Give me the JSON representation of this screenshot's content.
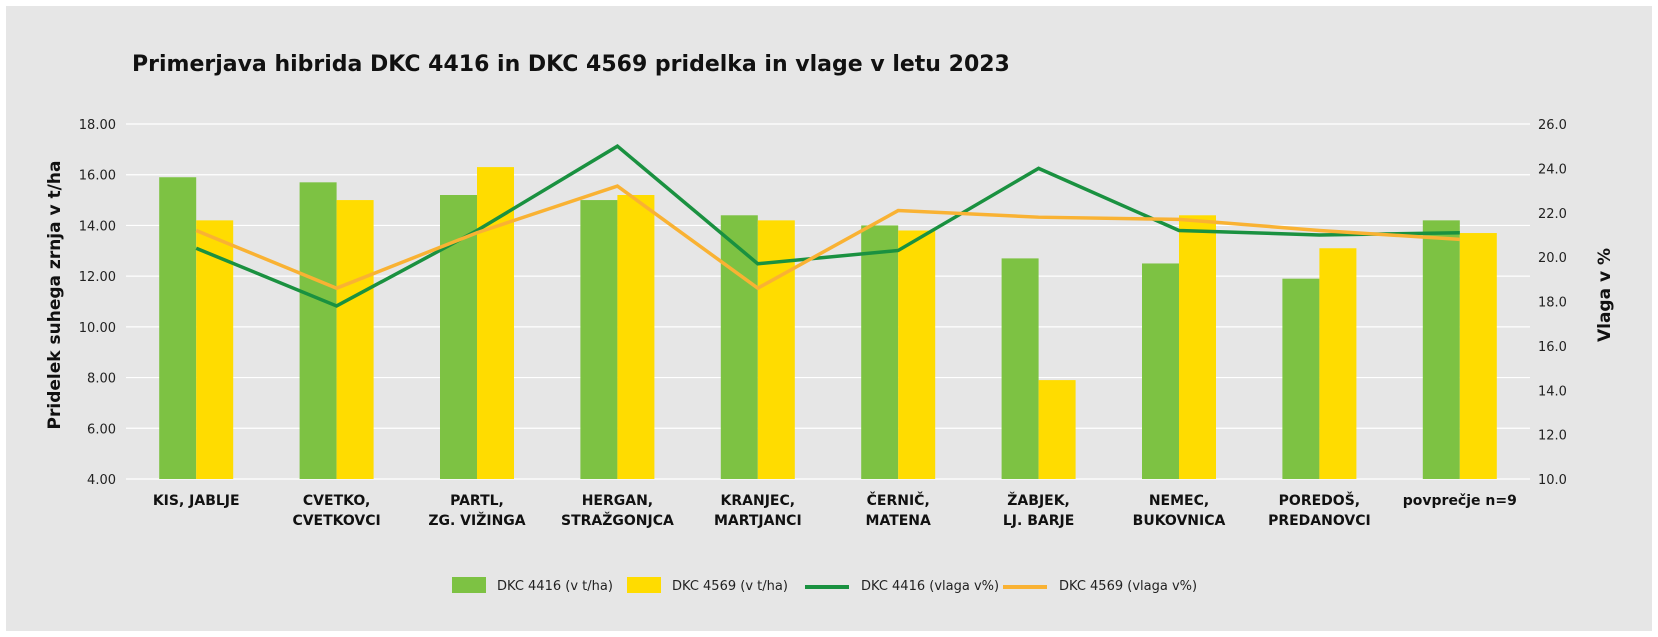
{
  "colors": {
    "background": "#e6e6e6",
    "dkc4416_bar": "#7dc243",
    "dkc4569_bar": "#ffdc00",
    "dkc4416_line": "#1a9140",
    "dkc4569_line": "#f9b233",
    "grid": "#ffffff"
  },
  "chart_data": {
    "type": "bar",
    "title": "Primerjava hibrida DKC 4416 in DKC 4569 pridelka in vlage v letu 2023",
    "ylabel": "Pridelek suhega zrnja v t/ha",
    "y2label": "Vlaga v %",
    "ylim": [
      4,
      18
    ],
    "y2lim": [
      10,
      26
    ],
    "yticks": [
      "4.00",
      "6.00",
      "8.00",
      "10.00",
      "12.00",
      "14.00",
      "16.00",
      "18.00"
    ],
    "y2ticks": [
      "10.0",
      "12.0",
      "14.0",
      "16.0",
      "18.0",
      "20.0",
      "22.0",
      "24.0",
      "26.0"
    ],
    "grid": true,
    "legend_position": "bottom",
    "categories": [
      [
        "KIS, JABLJE"
      ],
      [
        "CVETKO,",
        "CVETKOVCI"
      ],
      [
        "PARTL,",
        "ZG. VIŽINGA"
      ],
      [
        "HERGAN,",
        "STRAŽGONJCA"
      ],
      [
        "KRANJEC,",
        "MARTJANCI"
      ],
      [
        "ČERNIČ,",
        "MATENA"
      ],
      [
        "ŽABJEK,",
        "LJ. BARJE"
      ],
      [
        "NEMEC,",
        "BUKOVNICA"
      ],
      [
        "POREDOŠ,",
        "PREDANOVCI"
      ],
      [
        "povprečje n=9"
      ]
    ],
    "series": [
      {
        "name": "DKC 4416 (v t/ha)",
        "type": "bar",
        "axis": "left",
        "color": "#7dc243",
        "values": [
          15.9,
          15.7,
          15.2,
          15.0,
          14.4,
          14.0,
          12.7,
          12.5,
          11.9,
          14.2
        ]
      },
      {
        "name": "DKC 4569 (v t/ha)",
        "type": "bar",
        "axis": "left",
        "color": "#ffdc00",
        "values": [
          14.2,
          15.0,
          16.3,
          15.2,
          14.2,
          13.8,
          7.9,
          14.4,
          13.1,
          13.7
        ]
      },
      {
        "name": "DKC 4416 (vlaga v%)",
        "type": "line",
        "axis": "right",
        "color": "#1a9140",
        "values": [
          20.4,
          17.8,
          21.2,
          25.0,
          19.7,
          20.3,
          24.0,
          21.2,
          21.0,
          21.1
        ]
      },
      {
        "name": "DKC 4569 (vlaga v%)",
        "type": "line",
        "axis": "right",
        "color": "#f9b233",
        "values": [
          21.2,
          18.6,
          21.1,
          23.2,
          18.6,
          22.1,
          21.8,
          21.7,
          21.2,
          20.8
        ]
      }
    ]
  }
}
